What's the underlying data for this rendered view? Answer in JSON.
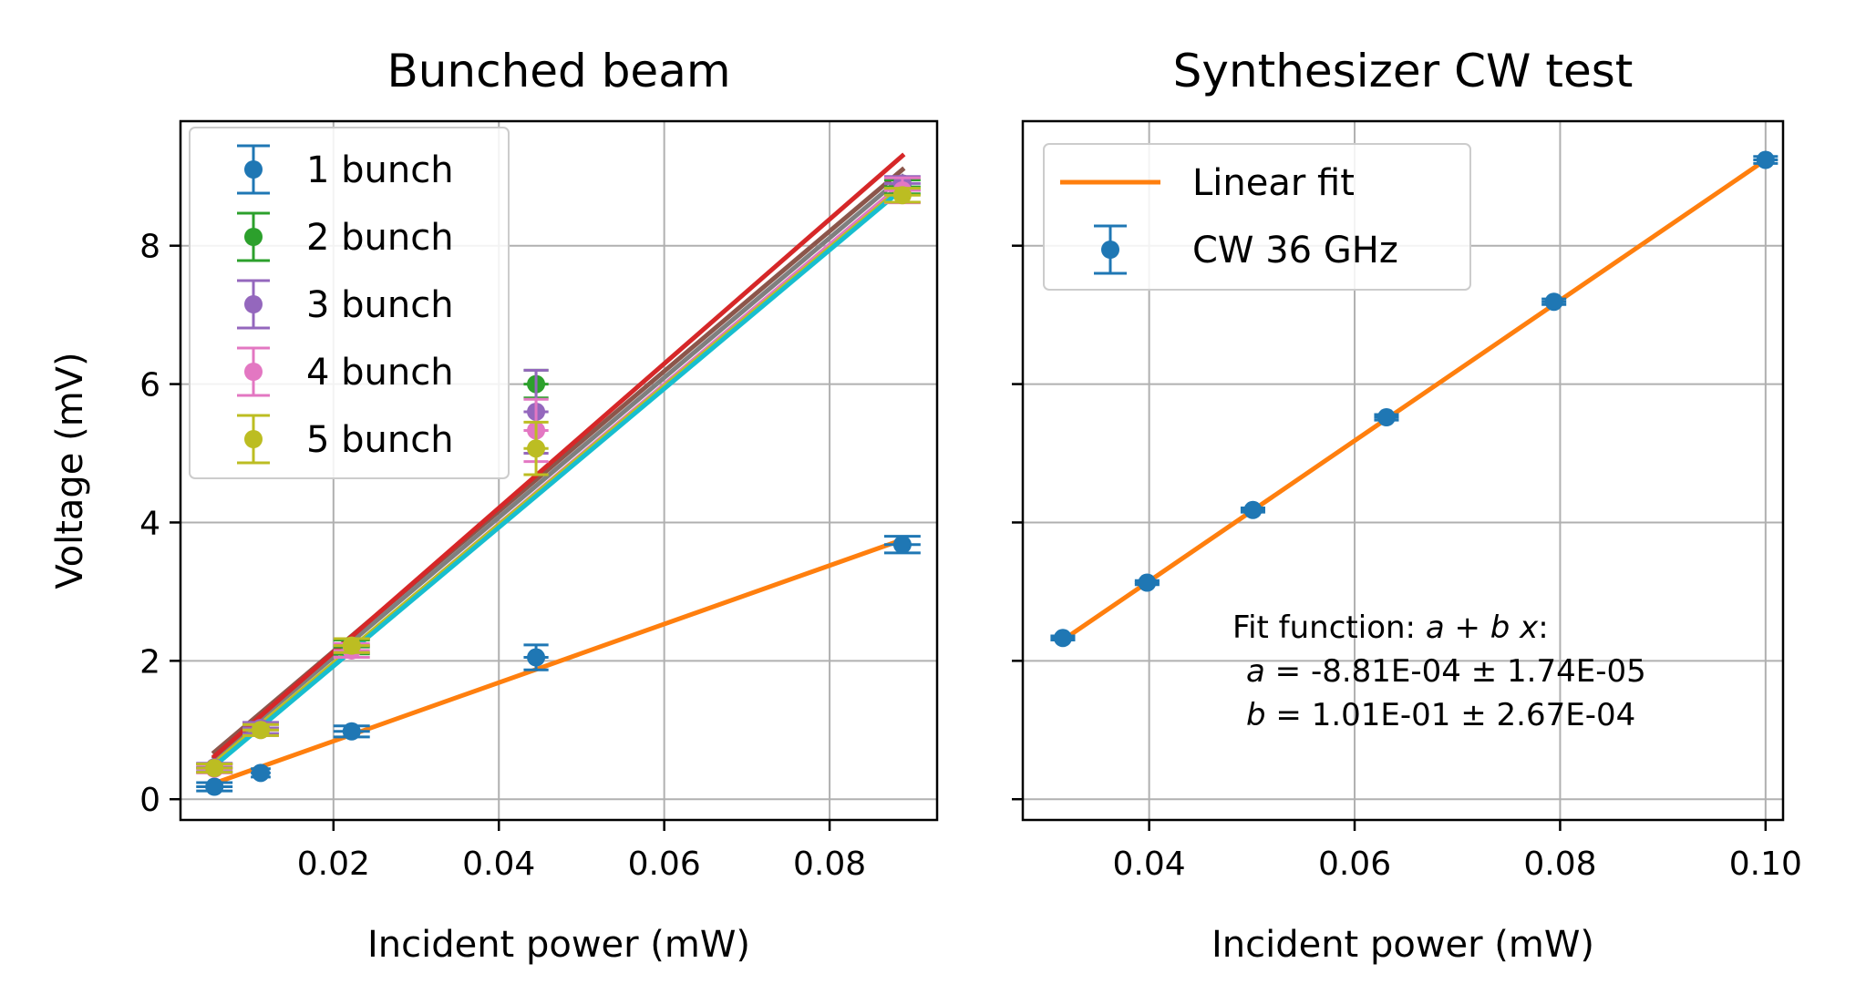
{
  "chart_data": [
    {
      "type": "scatter",
      "title": "Bunched beam",
      "xlabel": "Incident power (mW)",
      "ylabel": "Voltage (mV)",
      "xlim": [
        0.0015,
        0.093
      ],
      "ylim": [
        -0.3,
        9.8
      ],
      "xticks": [
        0.02,
        0.04,
        0.06,
        0.08
      ],
      "xtick_labels": [
        "0.02",
        "0.04",
        "0.06",
        "0.08"
      ],
      "yticks": [
        0,
        2,
        4,
        6,
        8
      ],
      "ytick_labels": [
        "0",
        "2",
        "4",
        "6",
        "8"
      ],
      "grid": true,
      "legend_position": "upper-left",
      "series": [
        {
          "name": "1 bunch",
          "color": "#1f77b4",
          "x": [
            0.0056,
            0.0112,
            0.0222,
            0.0445,
            0.0888
          ],
          "y": [
            0.18,
            0.38,
            0.98,
            2.05,
            3.68
          ],
          "yerr": [
            0.06,
            0.06,
            0.08,
            0.18,
            0.12
          ],
          "xerr": [
            0.0022,
            0.0012,
            0.0022,
            0.0015,
            0.0022
          ]
        },
        {
          "name": "2 bunch",
          "color": "#2ca02c",
          "x": [
            0.0056,
            0.0112,
            0.0222,
            0.0445,
            0.0888
          ],
          "y": [
            0.45,
            1.02,
            2.2,
            6.0,
            8.85
          ],
          "yerr": [
            0.06,
            0.08,
            0.1,
            0.2,
            0.1
          ],
          "xerr": [
            0.0022,
            0.0022,
            0.0022,
            0.0015,
            0.0022
          ]
        },
        {
          "name": "3 bunch",
          "color": "#9467bd",
          "x": [
            0.0056,
            0.0112,
            0.0222,
            0.0445,
            0.0888
          ],
          "y": [
            0.46,
            1.03,
            2.22,
            5.6,
            8.9
          ],
          "yerr": [
            0.06,
            0.08,
            0.1,
            0.6,
            0.1
          ],
          "xerr": [
            0.0022,
            0.0022,
            0.0022,
            0.0015,
            0.0022
          ]
        },
        {
          "name": "4 bunch",
          "color": "#e377c2",
          "x": [
            0.0056,
            0.0112,
            0.0222,
            0.0445,
            0.0888
          ],
          "y": [
            0.44,
            1.0,
            2.15,
            5.33,
            8.8
          ],
          "yerr": [
            0.06,
            0.08,
            0.1,
            0.45,
            0.18
          ],
          "xerr": [
            0.0022,
            0.0022,
            0.0022,
            0.0015,
            0.0022
          ]
        },
        {
          "name": "5 bunch",
          "color": "#bcbd22",
          "x": [
            0.0056,
            0.0112,
            0.0222,
            0.0445,
            0.0888
          ],
          "y": [
            0.45,
            1.0,
            2.22,
            5.07,
            8.73
          ],
          "yerr": [
            0.06,
            0.08,
            0.1,
            0.38,
            0.1
          ],
          "xerr": [
            0.0022,
            0.0022,
            0.0022,
            0.0015,
            0.0022
          ]
        }
      ],
      "fit_lines": [
        {
          "color": "#8c564b",
          "x": [
            0.0056,
            0.0888
          ],
          "y": [
            0.68,
            9.1
          ]
        },
        {
          "color": "#7f7f7f",
          "x": [
            0.0056,
            0.0888
          ],
          "y": [
            0.6,
            9.0
          ]
        },
        {
          "color": "#d62728",
          "x": [
            0.0056,
            0.0888
          ],
          "y": [
            0.62,
            9.3
          ]
        },
        {
          "color": "#e377c2",
          "x": [
            0.0056,
            0.0888
          ],
          "y": [
            0.5,
            8.9
          ]
        },
        {
          "color": "#bcbd22",
          "x": [
            0.0056,
            0.0888
          ],
          "y": [
            0.52,
            8.85
          ]
        },
        {
          "color": "#17becf",
          "x": [
            0.0056,
            0.0888
          ],
          "y": [
            0.48,
            8.82
          ]
        },
        {
          "color": "#ff7f0e",
          "x": [
            0.0056,
            0.0888
          ],
          "y": [
            0.23,
            3.75
          ]
        }
      ]
    },
    {
      "type": "scatter",
      "title": "Synthesizer CW test",
      "xlabel": "Incident power (mW)",
      "xlim": [
        0.0277,
        0.1017
      ],
      "ylim": [
        -0.3,
        9.8
      ],
      "xticks": [
        0.04,
        0.06,
        0.08,
        0.1
      ],
      "xtick_labels": [
        "0.04",
        "0.06",
        "0.08",
        "0.10"
      ],
      "yticks": [
        0,
        2,
        4,
        6,
        8
      ],
      "grid": true,
      "legend_position": "upper-left",
      "legend": [
        {
          "label": "Linear fit",
          "kind": "line",
          "color": "#ff7f0e"
        },
        {
          "label": "CW 36 GHz",
          "kind": "errorbar",
          "color": "#1f77b4"
        }
      ],
      "series": [
        {
          "name": "CW 36 GHz",
          "color": "#1f77b4",
          "x": [
            0.0316,
            0.0398,
            0.0501,
            0.0631,
            0.0794,
            0.1
          ],
          "y": [
            2.33,
            3.13,
            4.18,
            5.52,
            7.19,
            9.24
          ],
          "yerr": [
            0.03,
            0.03,
            0.03,
            0.04,
            0.04,
            0.05
          ],
          "xerr": [
            0.0012,
            0.0012,
            0.0012,
            0.0012,
            0.0012,
            0.0012
          ]
        }
      ],
      "fit_line": {
        "name": "Linear fit",
        "color": "#ff7f0e",
        "x": [
          0.0316,
          0.1
        ],
        "y": [
          2.3,
          9.24
        ]
      },
      "annotation": {
        "line1_text": "Fit function: ",
        "line1_formula": "a + b x",
        "line1_colon": ":",
        "line2_var": "a",
        "line2_text": " = -8.81E-04 ± 1.74E-05",
        "line3_var": "b",
        "line3_text": " = 1.01E-01 ± 2.67E-04"
      }
    }
  ]
}
